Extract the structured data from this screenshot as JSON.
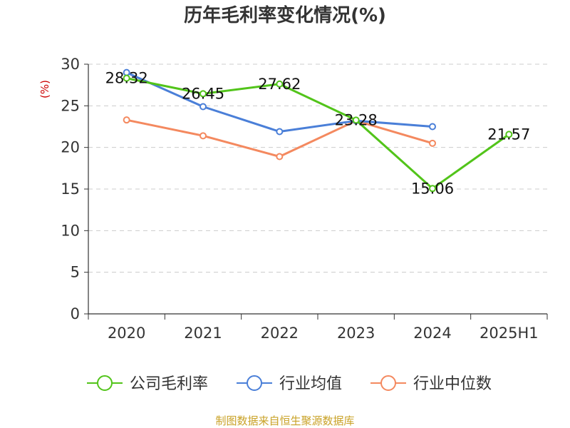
{
  "chart_data": {
    "type": "line",
    "title": "历年毛利率变化情况(%)",
    "ylabel": "(%)",
    "categories": [
      "2020",
      "2021",
      "2022",
      "2023",
      "2024",
      "2025H1"
    ],
    "ylim": [
      0,
      30
    ],
    "yticks": [
      0,
      5,
      10,
      15,
      20,
      25,
      30
    ],
    "grid": "horizontal-dashed",
    "legend_position": "bottom",
    "series": [
      {
        "name": "公司毛利率",
        "color": "#52c41a",
        "values": [
          28.32,
          26.45,
          27.62,
          23.28,
          15.06,
          21.57
        ],
        "labels": [
          "28.32",
          "26.45",
          "27.62",
          "23.28",
          "15.06",
          "21.57"
        ]
      },
      {
        "name": "行业均值",
        "color": "#4a7fd8",
        "values": [
          29.0,
          24.9,
          21.9,
          23.2,
          22.5,
          null
        ]
      },
      {
        "name": "行业中位数",
        "color": "#f4895f",
        "values": [
          23.3,
          21.4,
          18.9,
          23.2,
          20.5,
          null
        ]
      }
    ]
  },
  "source": "制图数据来自恒生聚源数据库"
}
